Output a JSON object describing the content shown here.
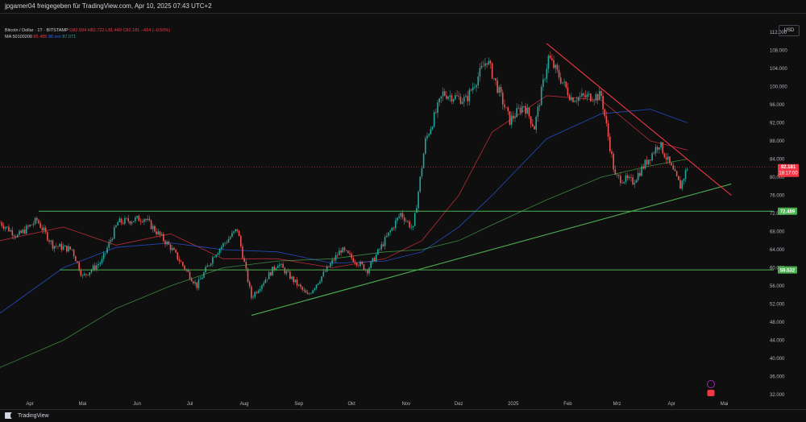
{
  "header": {
    "publisher": "jpgamer04 freigegeben für TradingView.com, Apr 10, 2025 07:43 UTC+2"
  },
  "legend": {
    "symbol": "Bitcoin / Dollar · 1T · BITSTAMP",
    "ohlc": "O82.594  H82.722  L81.449  C82.181  −414 (−0.50%)",
    "ma_label": "MA 50100200",
    "ma_values": [
      "85.485",
      "88.xxx",
      "87.071"
    ]
  },
  "currency": "USD",
  "footer": {
    "brand": "TradingView"
  },
  "colors": {
    "background": "#0f0f0f",
    "up": "#26a69a",
    "down": "#ef5350",
    "ma50": "#f23645",
    "ma100": "#2962ff",
    "ma200": "#4caf50",
    "support": "#4caf50",
    "resistance": "#f23645"
  },
  "chart_data": {
    "type": "candlestick",
    "timeframe": "1D",
    "x_labels": [
      "Apr",
      "Mai",
      "Jun",
      "Jul",
      "Aug",
      "Sep",
      "Okt",
      "Nov",
      "Dez",
      "2025",
      "Feb",
      "Mrz",
      "Apr",
      "Mai"
    ],
    "y_ticks": [
      "112.000",
      "108.000",
      "104.000",
      "100.000",
      "96.000",
      "92.000",
      "88.000",
      "84.000",
      "80.000",
      "76.000",
      "72.000",
      "68.000",
      "64.000",
      "60.000",
      "56.000",
      "52.000",
      "48.000",
      "44.000",
      "40.000",
      "36.000",
      "32.000"
    ],
    "ylim": [
      32000,
      112000
    ],
    "last_price": "82.181",
    "countdown": "18:17:00",
    "horizontal_levels": [
      {
        "label": "72.489",
        "value": 72489
      },
      {
        "label": "59.532",
        "value": 59532
      }
    ],
    "trendlines": [
      {
        "name": "support",
        "from": [
          "2024-08-05",
          49500
        ],
        "to": [
          "2025-05-05",
          78500
        ]
      },
      {
        "name": "resistance",
        "from": [
          "2025-01-20",
          109500
        ],
        "to": [
          "2025-05-05",
          76000
        ]
      }
    ],
    "price_path": [
      {
        "d": "2024-03-15",
        "v": 70000
      },
      {
        "d": "2024-03-25",
        "v": 67000
      },
      {
        "d": "2024-04-05",
        "v": 70500
      },
      {
        "d": "2024-04-14",
        "v": 65000
      },
      {
        "d": "2024-04-25",
        "v": 64000
      },
      {
        "d": "2024-05-01",
        "v": 58000
      },
      {
        "d": "2024-05-12",
        "v": 61500
      },
      {
        "d": "2024-05-21",
        "v": 70000
      },
      {
        "d": "2024-06-05",
        "v": 71000
      },
      {
        "d": "2024-06-20",
        "v": 64500
      },
      {
        "d": "2024-07-05",
        "v": 56000
      },
      {
        "d": "2024-07-15",
        "v": 63000
      },
      {
        "d": "2024-07-28",
        "v": 68500
      },
      {
        "d": "2024-08-05",
        "v": 53500
      },
      {
        "d": "2024-08-20",
        "v": 61000
      },
      {
        "d": "2024-09-06",
        "v": 53800
      },
      {
        "d": "2024-09-25",
        "v": 64000
      },
      {
        "d": "2024-10-10",
        "v": 59500
      },
      {
        "d": "2024-10-29",
        "v": 72000
      },
      {
        "d": "2024-11-05",
        "v": 68500
      },
      {
        "d": "2024-11-12",
        "v": 88000
      },
      {
        "d": "2024-11-22",
        "v": 98500
      },
      {
        "d": "2024-12-05",
        "v": 97000
      },
      {
        "d": "2024-12-17",
        "v": 106000
      },
      {
        "d": "2024-12-30",
        "v": 92500
      },
      {
        "d": "2025-01-07",
        "v": 96000
      },
      {
        "d": "2025-01-13",
        "v": 91000
      },
      {
        "d": "2025-01-21",
        "v": 106500
      },
      {
        "d": "2025-02-03",
        "v": 97500
      },
      {
        "d": "2025-02-20",
        "v": 98000
      },
      {
        "d": "2025-02-28",
        "v": 80000
      },
      {
        "d": "2025-03-10",
        "v": 79000
      },
      {
        "d": "2025-03-25",
        "v": 87500
      },
      {
        "d": "2025-04-06",
        "v": 78000
      },
      {
        "d": "2025-04-10",
        "v": 82181
      }
    ],
    "moving_averages": [
      {
        "name": "MA 50",
        "color": "#f23645",
        "points": [
          [
            "2024-03-15",
            66000
          ],
          [
            "2024-04-20",
            69000
          ],
          [
            "2024-05-20",
            65000
          ],
          [
            "2024-06-20",
            67500
          ],
          [
            "2024-07-20",
            62000
          ],
          [
            "2024-08-20",
            62000
          ],
          [
            "2024-09-20",
            60000
          ],
          [
            "2024-10-20",
            62000
          ],
          [
            "2024-11-10",
            66000
          ],
          [
            "2024-12-01",
            76000
          ],
          [
            "2024-12-20",
            90000
          ],
          [
            "2025-01-20",
            98000
          ],
          [
            "2025-02-20",
            97000
          ],
          [
            "2025-03-20",
            88000
          ],
          [
            "2025-04-10",
            86000
          ]
        ]
      },
      {
        "name": "MA 100",
        "color": "#2962ff",
        "points": [
          [
            "2024-03-15",
            50000
          ],
          [
            "2024-04-20",
            60000
          ],
          [
            "2024-05-20",
            64500
          ],
          [
            "2024-06-20",
            65500
          ],
          [
            "2024-07-20",
            64000
          ],
          [
            "2024-08-20",
            63500
          ],
          [
            "2024-09-20",
            61000
          ],
          [
            "2024-10-20",
            61500
          ],
          [
            "2024-11-10",
            63500
          ],
          [
            "2024-12-01",
            69000
          ],
          [
            "2024-12-20",
            76000
          ],
          [
            "2025-01-20",
            88500
          ],
          [
            "2025-02-20",
            94000
          ],
          [
            "2025-03-20",
            95000
          ],
          [
            "2025-04-10",
            92000
          ]
        ]
      },
      {
        "name": "MA 200",
        "color": "#4caf50",
        "points": [
          [
            "2024-03-15",
            38000
          ],
          [
            "2024-04-20",
            44000
          ],
          [
            "2024-05-20",
            51000
          ],
          [
            "2024-06-20",
            56000
          ],
          [
            "2024-07-20",
            60000
          ],
          [
            "2024-08-20",
            61500
          ],
          [
            "2024-09-20",
            62000
          ],
          [
            "2024-10-20",
            63500
          ],
          [
            "2024-11-10",
            64000
          ],
          [
            "2024-12-01",
            66000
          ],
          [
            "2024-12-20",
            69500
          ],
          [
            "2025-01-20",
            75000
          ],
          [
            "2025-02-20",
            80000
          ],
          [
            "2025-03-20",
            82500
          ],
          [
            "2025-04-10",
            84000
          ]
        ]
      }
    ]
  }
}
